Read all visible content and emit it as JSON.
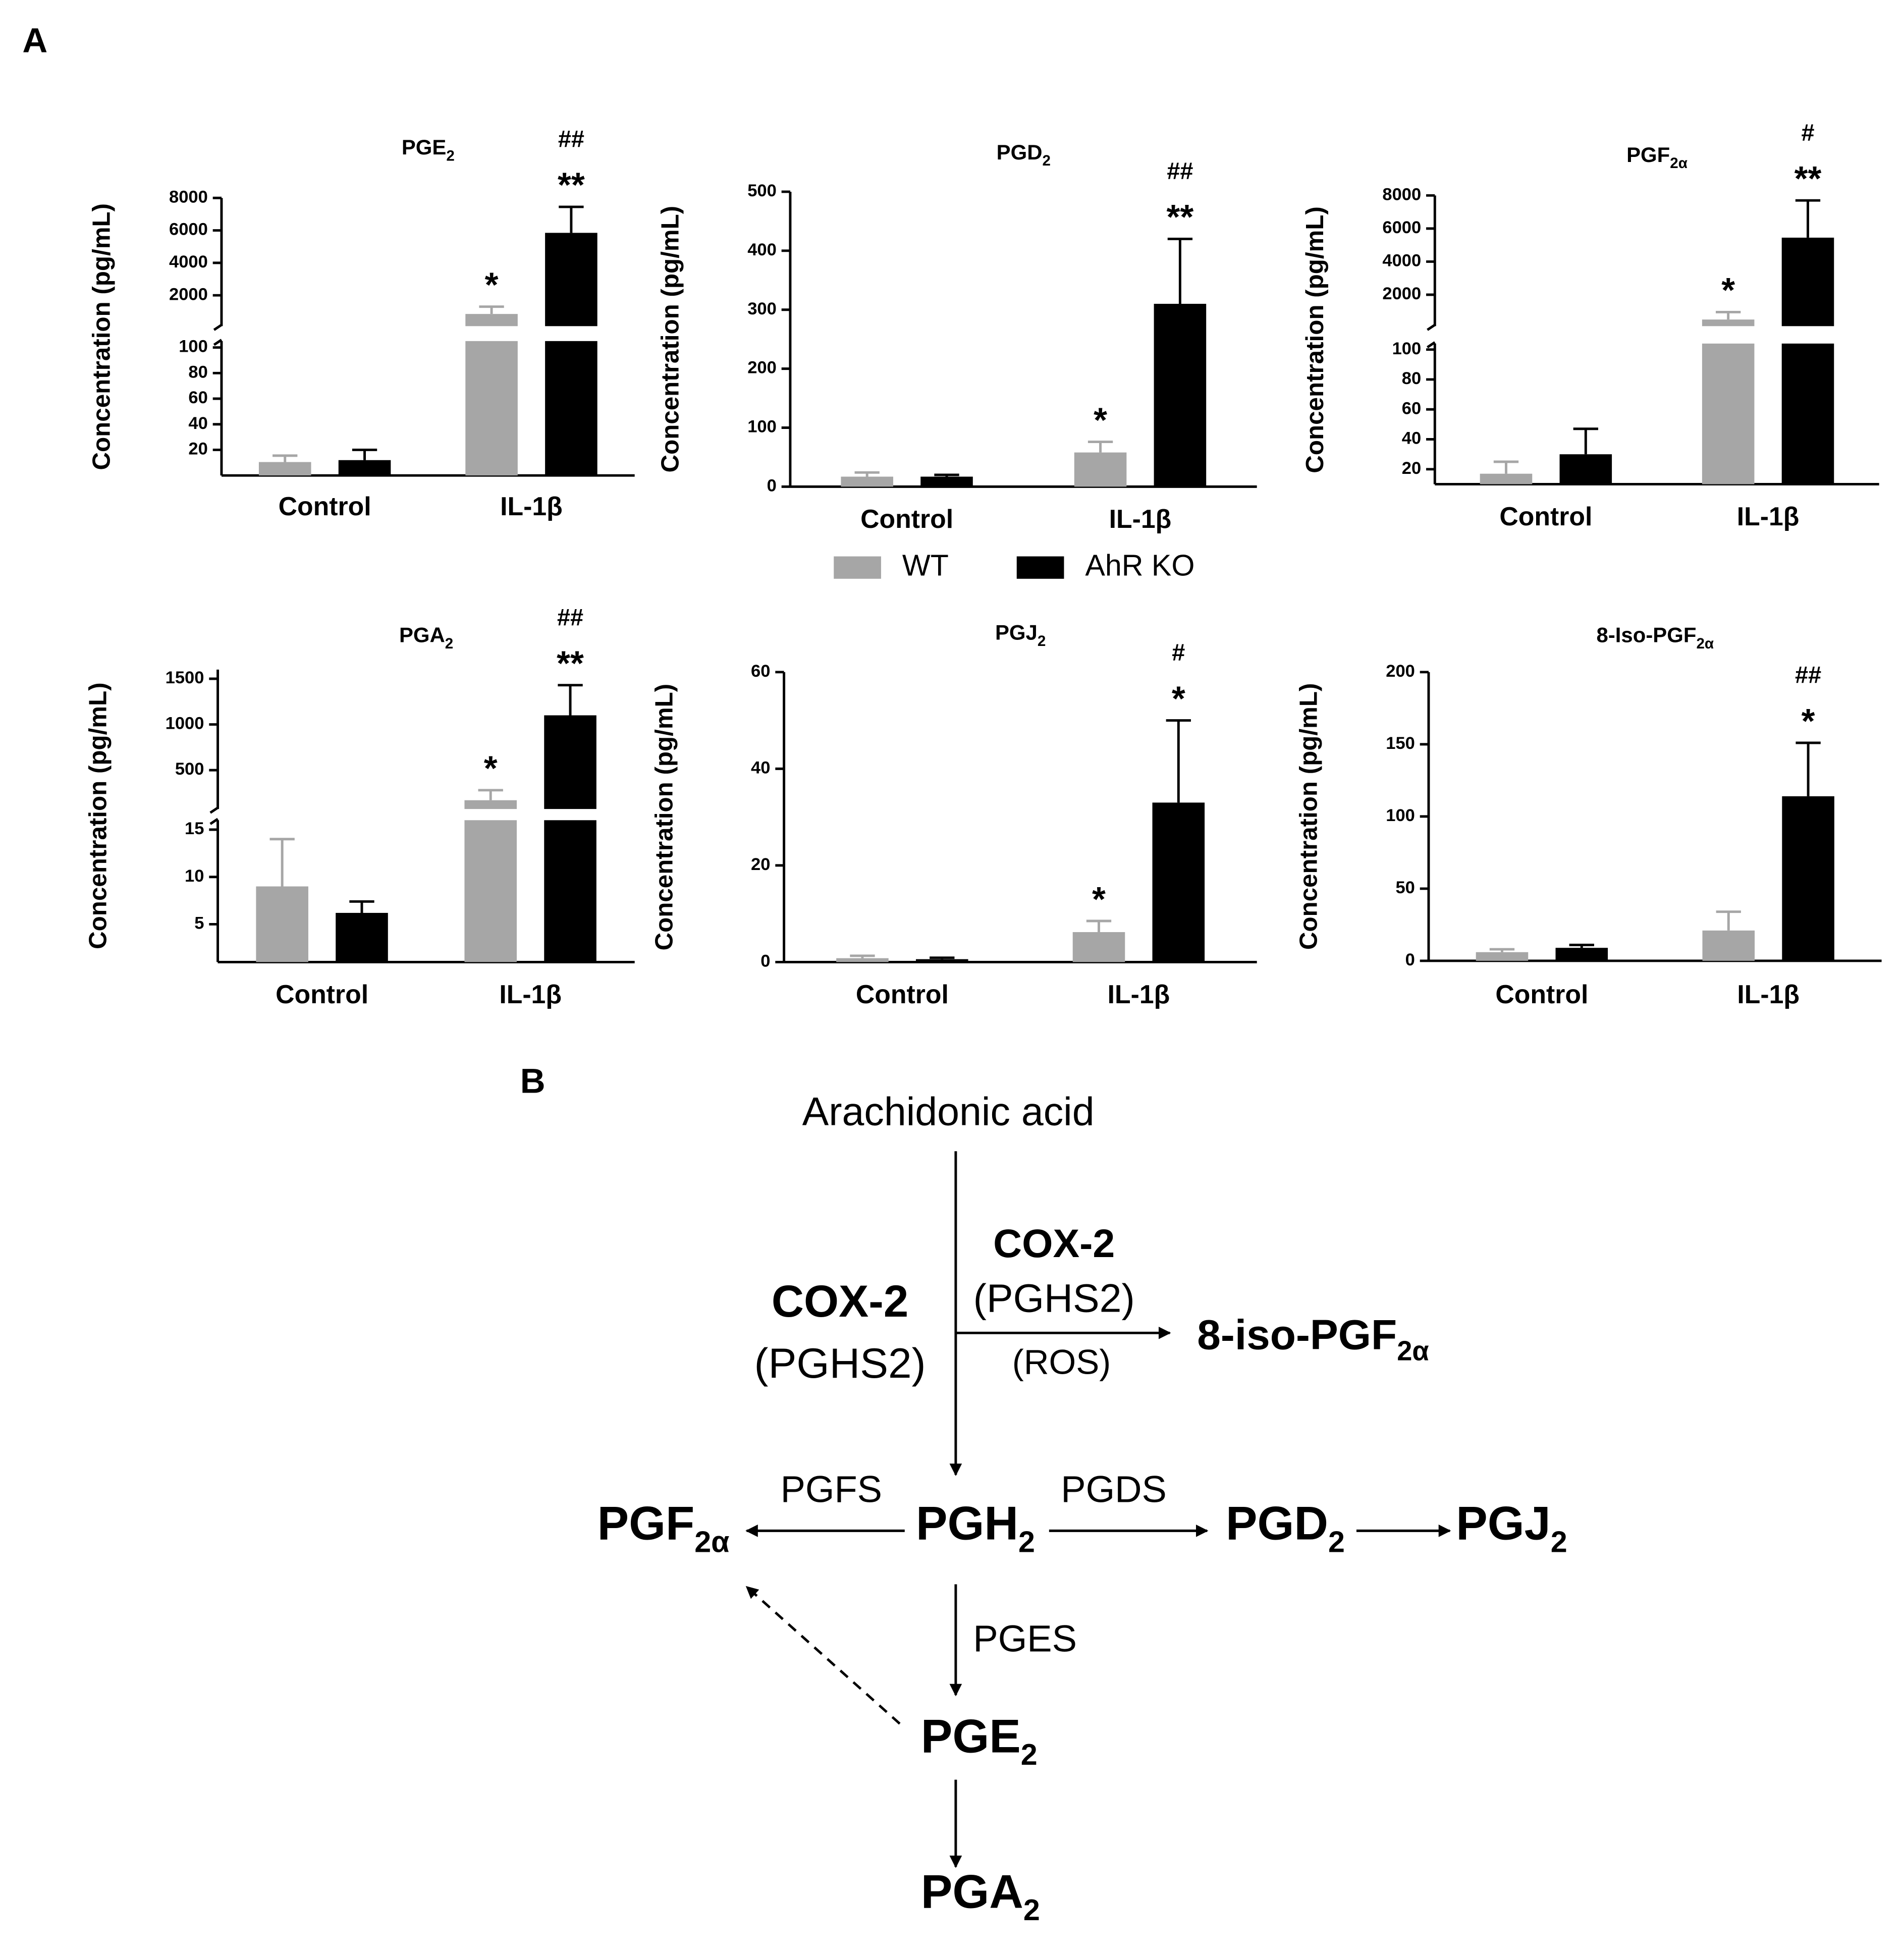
{
  "panel_label": "A",
  "chart_data": [
    {
      "type": "bar",
      "title": "PGE",
      "title_sub": "2",
      "ylabel": "Concentration (pg/mL)",
      "categories": [
        "Control",
        "IL-1β"
      ],
      "axis_break": true,
      "ylim": [
        0,
        105
      ],
      "yticks": [
        20,
        40,
        60,
        80,
        100
      ],
      "ylim_upper": [
        100,
        8000
      ],
      "yticks_upper": [
        2000,
        4000,
        6000,
        8000
      ],
      "series": [
        {
          "name": "WT",
          "color": "#a6a6a6",
          "values": [
            10.5,
            850
          ],
          "errors": [
            5,
            450
          ],
          "significance": [
            null,
            "*"
          ]
        },
        {
          "name": "AhR KO",
          "color": "#000000",
          "values": [
            12,
            5850
          ],
          "errors": [
            8,
            1600
          ],
          "significance": [
            null,
            "**"
          ],
          "significance_vs_wt": [
            null,
            "##"
          ]
        }
      ]
    },
    {
      "type": "bar",
      "title": "PGD",
      "title_sub": "2",
      "ylabel": "Concentration (pg/mL)",
      "categories": [
        "Control",
        "IL-1β"
      ],
      "legend": "bottom",
      "ylim": [
        0,
        500
      ],
      "yticks": [
        0,
        100,
        200,
        300,
        400,
        500
      ],
      "series": [
        {
          "name": "WT",
          "color": "#a6a6a6",
          "values": [
            17,
            58
          ],
          "errors": [
            7,
            18
          ],
          "significance": [
            null,
            "*"
          ]
        },
        {
          "name": "AhR KO",
          "color": "#000000",
          "values": [
            17,
            310
          ],
          "errors": [
            3,
            110
          ],
          "significance": [
            null,
            "**"
          ],
          "significance_vs_wt": [
            null,
            "##"
          ]
        }
      ]
    },
    {
      "type": "bar",
      "title": "PGF",
      "title_sub": "2α",
      "ylabel": "Concentration (pg/mL)",
      "categories": [
        "Control",
        "IL-1β"
      ],
      "axis_break": true,
      "ylim": [
        10,
        104
      ],
      "yticks": [
        20,
        40,
        60,
        80,
        100
      ],
      "ylim_upper": [
        100,
        8000
      ],
      "yticks_upper": [
        2000,
        4000,
        6000,
        8000
      ],
      "series": [
        {
          "name": "WT",
          "color": "#a6a6a6",
          "values": [
            17,
            500
          ],
          "errors": [
            8,
            450
          ],
          "significance": [
            null,
            "*"
          ]
        },
        {
          "name": "AhR KO",
          "color": "#000000",
          "values": [
            30,
            5450
          ],
          "errors": [
            17,
            2250
          ],
          "significance": [
            null,
            "**"
          ],
          "significance_vs_wt": [
            null,
            "#"
          ]
        }
      ]
    },
    {
      "type": "bar",
      "title": "PGA",
      "title_sub": "2",
      "ylabel": "Concentration (pg/mL)",
      "categories": [
        "Control",
        "IL-1β"
      ],
      "axis_break": true,
      "ylim": [
        1,
        16
      ],
      "yticks": [
        5,
        10,
        15
      ],
      "ylim_upper": [
        75,
        1600
      ],
      "yticks_upper": [
        500,
        1000,
        1500
      ],
      "series": [
        {
          "name": "WT",
          "color": "#a6a6a6",
          "values": [
            9,
            171
          ],
          "errors": [
            5,
            110
          ],
          "significance": [
            null,
            "*"
          ]
        },
        {
          "name": "AhR KO",
          "color": "#000000",
          "values": [
            6.2,
            1100
          ],
          "errors": [
            1.2,
            330
          ],
          "significance": [
            null,
            "**"
          ],
          "significance_vs_wt": [
            null,
            "##"
          ]
        }
      ]
    },
    {
      "type": "bar",
      "title": "PGJ",
      "title_sub": "2",
      "ylabel": "Concentration (pg/mL)",
      "categories": [
        "Control",
        "IL-1β"
      ],
      "ylim": [
        0,
        60
      ],
      "yticks": [
        0,
        20,
        40,
        60
      ],
      "series": [
        {
          "name": "WT",
          "color": "#a6a6a6",
          "values": [
            0.8,
            6.2
          ],
          "errors": [
            0.5,
            2.3
          ],
          "significance": [
            null,
            "*"
          ]
        },
        {
          "name": "AhR KO",
          "color": "#000000",
          "values": [
            0.6,
            33
          ],
          "errors": [
            0.3,
            17
          ],
          "significance": [
            null,
            "*"
          ],
          "significance_vs_wt": [
            null,
            "#"
          ]
        }
      ]
    },
    {
      "type": "bar",
      "title": "8-Iso-PGF",
      "title_sub": "2α",
      "ylabel": "Concentration (pg/mL)",
      "categories": [
        "Control",
        "IL-1β"
      ],
      "ylim": [
        0,
        200
      ],
      "yticks": [
        0,
        50,
        100,
        150,
        200
      ],
      "series": [
        {
          "name": "WT",
          "color": "#a6a6a6",
          "values": [
            6,
            21
          ],
          "errors": [
            2,
            13
          ]
        },
        {
          "name": "AhR KO",
          "color": "#000000",
          "values": [
            9,
            114
          ],
          "errors": [
            2,
            37
          ],
          "significance": [
            null,
            "*"
          ],
          "significance_vs_wt": [
            null,
            "##"
          ]
        }
      ]
    }
  ],
  "diagram": {
    "label": "B",
    "source": "Arachidonic acid",
    "enzyme_left": [
      "COX-2",
      "(PGHS2)"
    ],
    "enzyme_right": [
      "COX-2",
      "(PGHS2)",
      "(ROS)"
    ],
    "products": [
      {
        "text": "8-iso-PGF",
        "sub": "2α"
      },
      {
        "text": "PGF",
        "sub": "2α"
      },
      {
        "text": "PGH",
        "sub": "2"
      },
      {
        "text": "PGD",
        "sub": "2"
      },
      {
        "text": "PGJ",
        "sub": "2"
      },
      {
        "text": "PGE",
        "sub": "2"
      },
      {
        "text": "PGA",
        "sub": "2"
      }
    ],
    "enzymes": [
      "PGFS",
      "PGDS",
      "PGES"
    ]
  }
}
